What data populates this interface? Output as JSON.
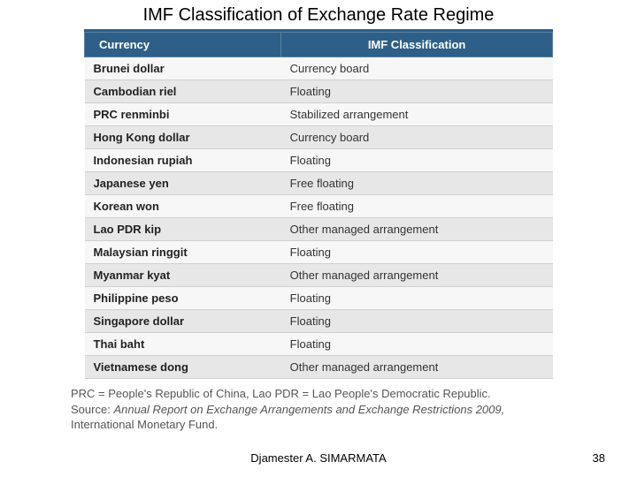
{
  "title": "IMF Classification of Exchange Rate Regime",
  "table": {
    "type": "table",
    "header_bg": "#2e5f88",
    "header_fg": "#ffffff",
    "row_odd_bg": "#f7f7f7",
    "row_even_bg": "#e7e7e7",
    "border_color": "#cfcfcf",
    "columns": [
      "Currency",
      "IMF Classification"
    ],
    "rows": [
      [
        "Brunei dollar",
        "Currency board"
      ],
      [
        "Cambodian riel",
        "Floating"
      ],
      [
        "PRC renminbi",
        "Stabilized arrangement"
      ],
      [
        "Hong Kong dollar",
        "Currency board"
      ],
      [
        "Indonesian rupiah",
        "Floating"
      ],
      [
        "Japanese yen",
        "Free floating"
      ],
      [
        "Korean won",
        "Free floating"
      ],
      [
        "Lao PDR kip",
        "Other managed arrangement"
      ],
      [
        "Malaysian ringgit",
        "Floating"
      ],
      [
        "Myanmar kyat",
        "Other managed arrangement"
      ],
      [
        "Philippine peso",
        "Floating"
      ],
      [
        "Singapore dollar",
        "Floating"
      ],
      [
        "Thai baht",
        "Floating"
      ],
      [
        "Vietnamese dong",
        "Other managed arrangement"
      ]
    ]
  },
  "notes": {
    "definition": "PRC = People's Republic of China,  Lao PDR = Lao People's Democratic Republic.",
    "source_label": "Source:",
    "source_italic": "Annual Report on Exchange Arrangements and Exchange Restrictions 2009,",
    "source_tail": " International Monetary Fund."
  },
  "footer": {
    "author": "Djamester A. SIMARMATA",
    "page": "38"
  }
}
